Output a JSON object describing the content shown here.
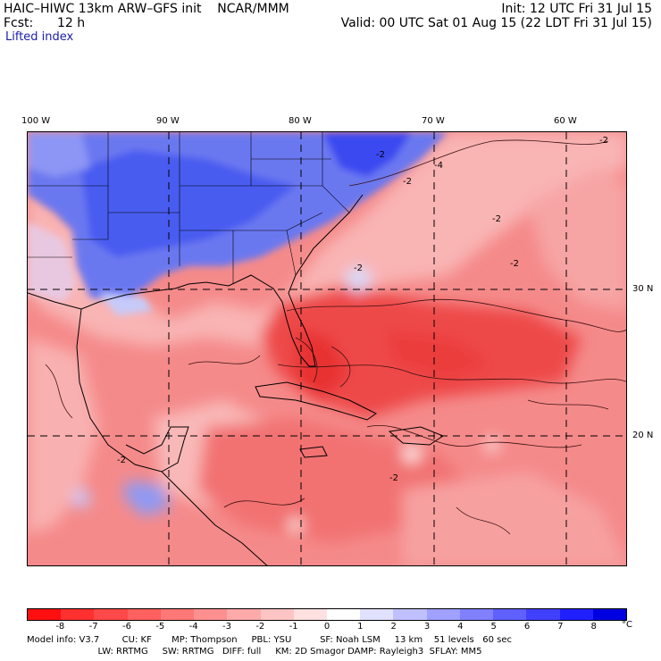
{
  "header": {
    "title": "HAIC–HIWC 13km ARW–GFS init    NCAR/MMM",
    "init": "Init: 12 UTC Fri 31 Jul 15",
    "fcst_label": "Fcst:",
    "fcst_value": "12 h",
    "valid": "Valid: 00 UTC Sat 01 Aug 15 (22 LDT Fri 31 Jul 15)",
    "field": "Lifted index"
  },
  "axes": {
    "lon_labels": [
      "100 W",
      "90 W",
      "80 W",
      "70 W",
      "60 W"
    ],
    "lat_labels": [
      "30 N",
      "20 N"
    ]
  },
  "contour_labels": [
    "-2",
    "-2",
    "-2",
    "-2",
    "-2",
    "-4",
    "-2",
    "-2",
    "-2"
  ],
  "colorbar": {
    "ticks": [
      "-8",
      "-7",
      "-6",
      "-5",
      "-4",
      "-3",
      "-2",
      "-1",
      "0",
      "1",
      "2",
      "3",
      "4",
      "5",
      "6",
      "7",
      "8"
    ],
    "unit": "°C",
    "colors": [
      "#ff1010",
      "#ff3030",
      "#ff4848",
      "#ff6060",
      "#ff7878",
      "#ff9090",
      "#ffaaaa",
      "#ffc4c4",
      "#ffe0e0",
      "#ffffff",
      "#e0e0ff",
      "#c0c0ff",
      "#a0a0ff",
      "#8080ff",
      "#6060ff",
      "#4040ff",
      "#2020ff",
      "#0000e0"
    ]
  },
  "footer": {
    "line1": "Model info: V3.7        CU: KF       MP: Thompson     PBL: YSU          SF: Noah LSM     13 km    51 levels   60 sec",
    "line2": "   LW: RRTMG     SW: RRTMG   DIFF: full     KM: 2D Smagor DAMP: Rayleigh3  SFLAY: MM5"
  },
  "map_colors": {
    "red_deep": "#f04040",
    "red": "#f47070",
    "red_light": "#f8a0a0",
    "pink": "#fcd0d0",
    "blue": "#6070f0",
    "blue_light": "#b0b8f8"
  }
}
